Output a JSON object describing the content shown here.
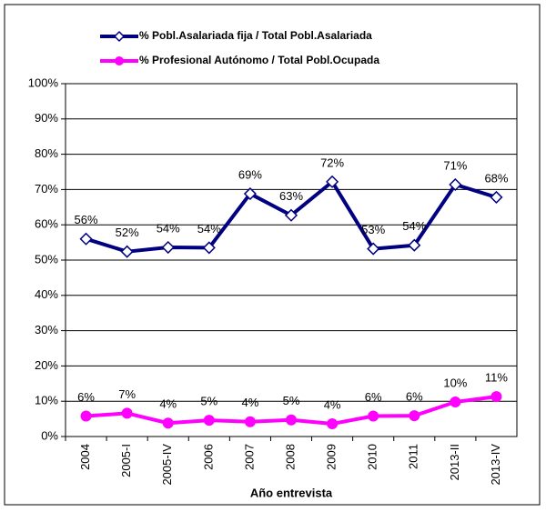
{
  "chart_data": {
    "type": "line",
    "categories": [
      "2004",
      "2005-I",
      "2005-IV",
      "2006",
      "2007",
      "2008",
      "2009",
      "2010",
      "2011",
      "2013-II",
      "2013-IV"
    ],
    "series": [
      {
        "name": "% Pobl.Asalariada fija / Total Pobl.Asalariada",
        "color": "#000080",
        "values": [
          56,
          52.4,
          53.6,
          53.5,
          68.8,
          62.7,
          72.2,
          53.2,
          54.2,
          71.4,
          67.8
        ],
        "value_labels": [
          "56%",
          "52%",
          "54%",
          "54%",
          "69%",
          "63%",
          "72%",
          "53%",
          "54%",
          "71%",
          "68%"
        ]
      },
      {
        "name": "% Profesional Autónomo / Total Pobl.Ocupada",
        "color": "#ff00ff",
        "values": [
          5.8,
          6.6,
          3.8,
          4.6,
          4.2,
          4.7,
          3.6,
          5.8,
          5.9,
          9.8,
          11.3
        ],
        "value_labels": [
          "6%",
          "7%",
          "4%",
          "5%",
          "4%",
          "5%",
          "4%",
          "6%",
          "6%",
          "10%",
          "11%"
        ]
      }
    ],
    "x_label": "Año entrevista",
    "ylim": [
      0,
      100
    ],
    "yticks": [
      {
        "value": 0,
        "label": "0%"
      },
      {
        "value": 10,
        "label": "10%"
      },
      {
        "value": 20,
        "label": "20%"
      },
      {
        "value": 30,
        "label": "30%"
      },
      {
        "value": 40,
        "label": "40%"
      },
      {
        "value": 50,
        "label": "50%"
      },
      {
        "value": 60,
        "label": "60%"
      },
      {
        "value": 70,
        "label": "70%"
      },
      {
        "value": 80,
        "label": "80%"
      },
      {
        "value": 90,
        "label": "90%"
      },
      {
        "value": 100,
        "label": "100%"
      }
    ],
    "grid": true
  }
}
